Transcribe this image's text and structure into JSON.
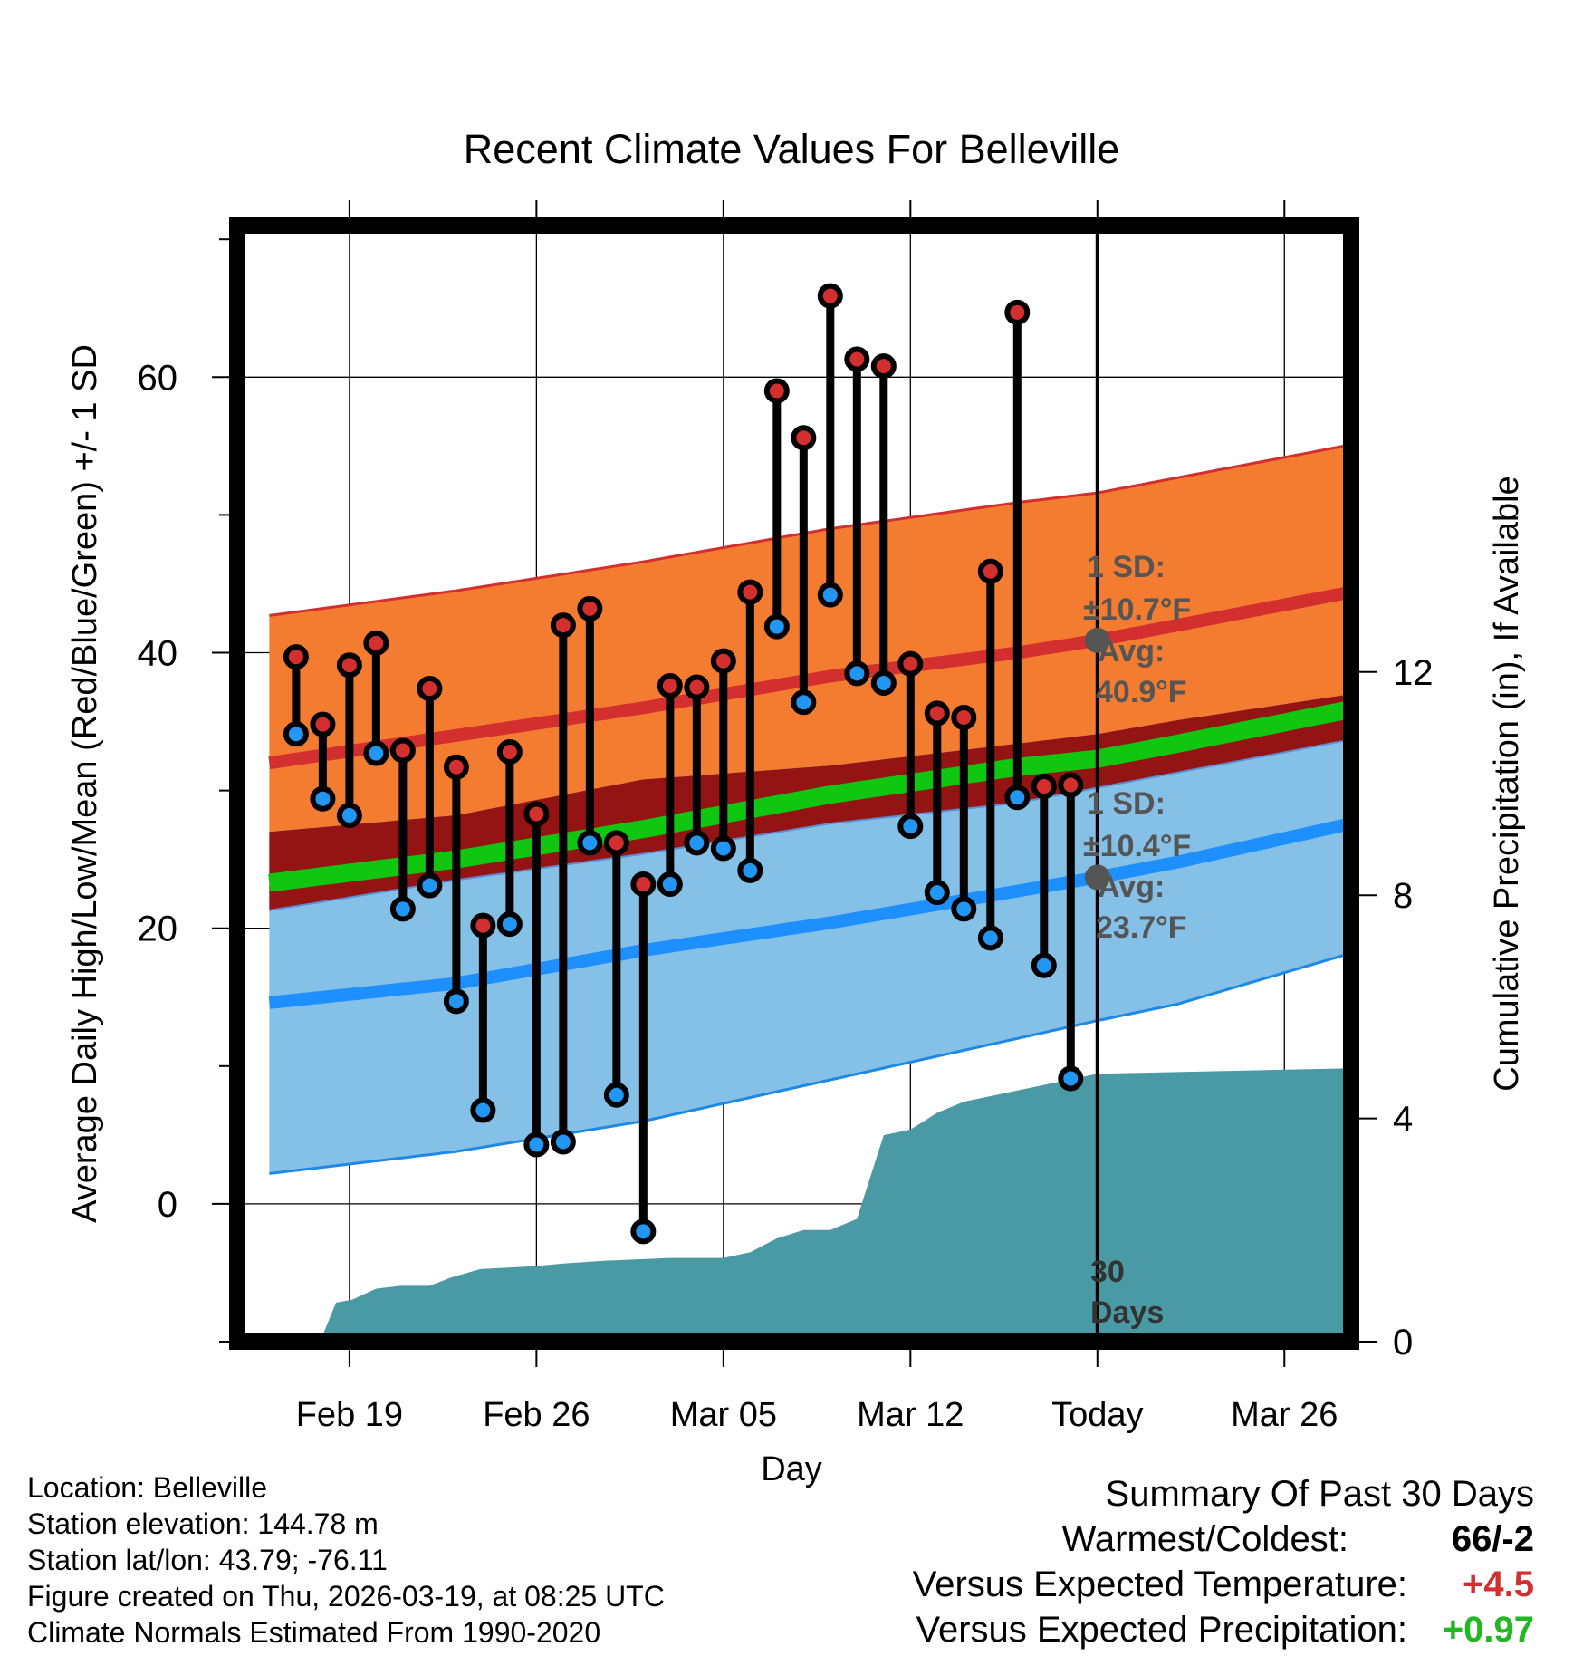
{
  "chart_data": {
    "type": "line",
    "title": "Recent Climate Values For Belleville",
    "xlabel": "Day",
    "ylabel_left": "Average Daily High/Low/Mean (Red/Blue/Green) +/- 1 SD",
    "ylabel_right": "Cumulative Precipitation (in), If Available",
    "x_range_days": [
      -32.2,
      9.5
    ],
    "ylim_temp": [
      -10,
      71
    ],
    "ylim_precip": [
      0,
      20
    ],
    "x_ticks": [
      {
        "day": -28,
        "label": "Feb 19"
      },
      {
        "day": -21,
        "label": "Feb 26"
      },
      {
        "day": -14,
        "label": "Mar 05"
      },
      {
        "day": -7,
        "label": "Mar 12"
      },
      {
        "day": 0,
        "label": "Today"
      },
      {
        "day": 7,
        "label": "Mar 26"
      }
    ],
    "y_ticks_left": [
      0,
      20,
      40,
      60
    ],
    "y_ticks_right": [
      0,
      4,
      8,
      12
    ],
    "normals": {
      "day": [
        -31,
        -24,
        -17,
        -10,
        -3,
        0,
        3,
        9.5
      ],
      "high_mean": [
        32.0,
        34.0,
        36.0,
        38.3,
        40.0,
        40.9,
        42.0,
        44.4
      ],
      "high_upper": [
        42.7,
        44.5,
        46.6,
        49.0,
        50.9,
        51.6,
        52.7,
        55.1
      ],
      "low_mean": [
        14.6,
        16.0,
        18.4,
        20.4,
        22.7,
        23.7,
        24.8,
        27.6
      ],
      "low_lower": [
        2.2,
        3.8,
        6.0,
        9.0,
        12.0,
        13.3,
        14.5,
        18.2
      ],
      "mean_line": [
        23.3,
        25.0,
        27.2,
        29.7,
        31.7,
        32.3,
        33.4,
        35.9
      ],
      "mean_band": 1.2
    },
    "series": [
      {
        "name": "Daily High",
        "color": "#d32f2f",
        "values": [
          39.7,
          34.8,
          39.1,
          40.7,
          32.9,
          37.4,
          31.7,
          20.2,
          32.8,
          28.3,
          42.0,
          43.2,
          26.2,
          23.2,
          37.6,
          37.5,
          39.4,
          44.4,
          59.0,
          55.6,
          65.9,
          61.3,
          60.8,
          39.2,
          35.6,
          35.3,
          45.9,
          64.7,
          30.3,
          30.4
        ]
      },
      {
        "name": "Daily Low",
        "color": "#2196f3",
        "values": [
          34.1,
          29.4,
          28.2,
          32.7,
          21.4,
          23.1,
          14.7,
          6.8,
          20.3,
          4.3,
          4.5,
          26.2,
          7.9,
          -2.0,
          23.2,
          26.2,
          25.8,
          24.2,
          41.9,
          36.4,
          44.2,
          38.5,
          37.8,
          27.4,
          22.6,
          21.4,
          19.3,
          29.5,
          17.3,
          9.1
        ]
      }
    ],
    "days": [
      -30,
      -29,
      -28,
      -27,
      -26,
      -25,
      -24,
      -23,
      -22,
      -21,
      -20,
      -19,
      -18,
      -17,
      -16,
      -15,
      -14,
      -13,
      -12,
      -11,
      -10,
      -9,
      -8,
      -7,
      -6,
      -5,
      -4,
      -3,
      -2,
      -1
    ],
    "precipitation": {
      "name": "Cumulative Precipitation",
      "color": "#4a9aa5",
      "day": [
        -29.1,
        -28.5,
        -27.9,
        -27.0,
        -26.1,
        -25.0,
        -24.2,
        -23.1,
        -21.1,
        -20.0,
        -18.5,
        -16.0,
        -14.0,
        -13.0,
        -12.0,
        -11.0,
        -10.0,
        -9.0,
        -8.0,
        -7.0,
        -6.0,
        -5.0,
        -4.0,
        -3.0,
        -2.0,
        0.0,
        9.5
      ],
      "values": [
        0.0,
        0.7,
        0.75,
        0.95,
        1.0,
        1.0,
        1.15,
        1.3,
        1.35,
        1.4,
        1.45,
        1.5,
        1.5,
        1.6,
        1.85,
        2.0,
        2.0,
        2.2,
        3.7,
        3.8,
        4.1,
        4.3,
        4.4,
        4.5,
        4.6,
        4.8,
        4.9
      ]
    },
    "annotations": {
      "high_sd": "1 SD:",
      "high_sd_val": "±10.7°F",
      "high_avg": "Avg:",
      "high_avg_val": "40.9°F",
      "low_sd": "1 SD:",
      "low_sd_val": "±10.4°F",
      "low_avg": "Avg:",
      "low_avg_val": "23.7°F",
      "period": "30",
      "period_unit": "Days"
    }
  },
  "footer": {
    "location": "Location: Belleville",
    "elevation": "Station elevation: 144.78 m",
    "latlon": "Station lat/lon: 43.79; -76.11",
    "created": "Figure created on Thu, 2026-03-19, at 08:25 UTC",
    "normals": "Climate Normals Estimated From 1990-2020"
  },
  "summary": {
    "title": "Summary Of Past 30 Days",
    "warmest_label": "Warmest/Coldest:",
    "warmest_value": "66/-2",
    "temp_label": "Versus Expected Temperature:",
    "temp_value": "+4.5",
    "temp_color": "#d32f2f",
    "precip_label": "Versus Expected Precipitation:",
    "precip_value": "+0.97",
    "precip_color": "#22b822"
  }
}
